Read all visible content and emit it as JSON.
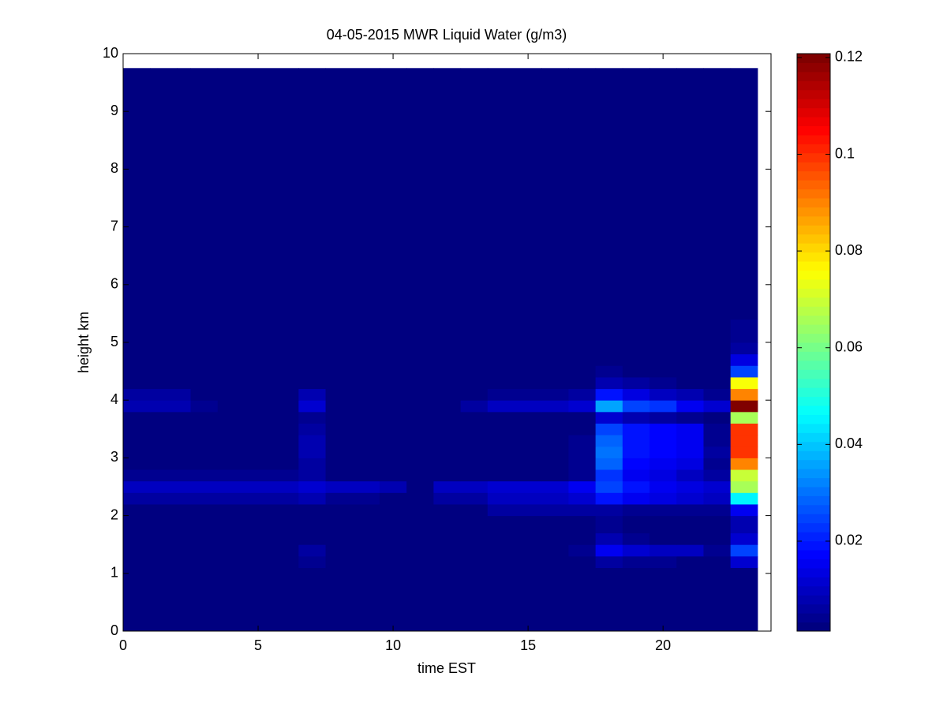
{
  "chart_data": {
    "type": "heatmap",
    "title": "04-05-2015 MWR Liquid Water (g/m3)",
    "x_label": "time EST",
    "y_label": "height km",
    "xlim": [
      0,
      24
    ],
    "xticks": [
      0,
      5,
      10,
      15,
      20
    ],
    "ylim": [
      0,
      10
    ],
    "yticks": [
      0,
      1,
      2,
      3,
      4,
      5,
      6,
      7,
      8,
      9,
      10
    ],
    "colormap": "jet",
    "clim": [
      0.0014,
      0.1208
    ],
    "cticks": [
      0.02,
      0.04,
      0.06,
      0.08,
      0.1,
      0.12
    ],
    "x_edges": [
      0,
      1,
      2,
      2.5,
      3.5,
      6.5,
      7.5,
      9.5,
      10.5,
      11.5,
      12.5,
      13.5,
      15.5,
      16.5,
      17.5,
      18.5,
      19.5,
      20.5,
      21.5,
      22.5,
      23.5
    ],
    "y_edges": [
      0,
      1.1,
      1.3,
      1.5,
      1.7,
      2.0,
      2.2,
      2.4,
      2.6,
      2.8,
      3.0,
      3.2,
      3.4,
      3.6,
      3.8,
      4.0,
      4.2,
      4.4,
      4.6,
      4.8,
      5.0,
      5.4,
      9.75
    ],
    "z": [
      [
        0.002,
        0.002,
        0.002,
        0.002,
        0.002,
        0.002,
        0.002,
        0.002,
        0.002,
        0.002,
        0.002,
        0.002,
        0.002,
        0.002,
        0.002,
        0.002,
        0.002,
        0.002,
        0.002,
        0.002
      ],
      [
        0.002,
        0.002,
        0.002,
        0.002,
        0.002,
        0.004,
        0.002,
        0.002,
        0.002,
        0.002,
        0.002,
        0.002,
        0.002,
        0.002,
        0.006,
        0.004,
        0.004,
        0.003,
        0.002,
        0.012
      ],
      [
        0.002,
        0.002,
        0.002,
        0.002,
        0.002,
        0.006,
        0.002,
        0.002,
        0.002,
        0.002,
        0.002,
        0.002,
        0.002,
        0.005,
        0.015,
        0.012,
        0.01,
        0.01,
        0.004,
        0.025
      ],
      [
        0.002,
        0.002,
        0.002,
        0.002,
        0.002,
        0.002,
        0.002,
        0.002,
        0.002,
        0.002,
        0.002,
        0.002,
        0.002,
        0.002,
        0.008,
        0.004,
        0.003,
        0.003,
        0.002,
        0.012
      ],
      [
        0.002,
        0.002,
        0.002,
        0.002,
        0.002,
        0.002,
        0.002,
        0.002,
        0.002,
        0.002,
        0.002,
        0.002,
        0.002,
        0.002,
        0.004,
        0.002,
        0.002,
        0.002,
        0.002,
        0.008
      ],
      [
        0.002,
        0.002,
        0.002,
        0.002,
        0.002,
        0.003,
        0.002,
        0.002,
        0.002,
        0.002,
        0.002,
        0.006,
        0.006,
        0.006,
        0.006,
        0.005,
        0.005,
        0.005,
        0.005,
        0.015
      ],
      [
        0.006,
        0.006,
        0.006,
        0.006,
        0.006,
        0.007,
        0.004,
        0.002,
        0.002,
        0.006,
        0.006,
        0.01,
        0.01,
        0.012,
        0.02,
        0.016,
        0.014,
        0.012,
        0.01,
        0.045
      ],
      [
        0.01,
        0.01,
        0.01,
        0.01,
        0.01,
        0.012,
        0.009,
        0.007,
        0.003,
        0.01,
        0.01,
        0.012,
        0.012,
        0.015,
        0.025,
        0.02,
        0.015,
        0.013,
        0.012,
        0.065
      ],
      [
        0.004,
        0.004,
        0.004,
        0.004,
        0.004,
        0.006,
        0.002,
        0.002,
        0.002,
        0.002,
        0.002,
        0.002,
        0.002,
        0.004,
        0.022,
        0.016,
        0.014,
        0.01,
        0.006,
        0.07
      ],
      [
        0.002,
        0.002,
        0.002,
        0.002,
        0.002,
        0.006,
        0.002,
        0.002,
        0.002,
        0.002,
        0.002,
        0.002,
        0.002,
        0.004,
        0.028,
        0.018,
        0.016,
        0.013,
        0.005,
        0.09
      ],
      [
        0.002,
        0.002,
        0.002,
        0.002,
        0.002,
        0.008,
        0.002,
        0.002,
        0.002,
        0.002,
        0.002,
        0.002,
        0.002,
        0.004,
        0.03,
        0.02,
        0.018,
        0.016,
        0.006,
        0.1
      ],
      [
        0.002,
        0.002,
        0.002,
        0.002,
        0.002,
        0.007,
        0.002,
        0.002,
        0.002,
        0.002,
        0.002,
        0.002,
        0.002,
        0.004,
        0.028,
        0.02,
        0.018,
        0.016,
        0.005,
        0.1
      ],
      [
        0.002,
        0.002,
        0.002,
        0.002,
        0.002,
        0.006,
        0.002,
        0.002,
        0.002,
        0.002,
        0.002,
        0.002,
        0.002,
        0.003,
        0.025,
        0.02,
        0.018,
        0.016,
        0.004,
        0.1
      ],
      [
        0.002,
        0.002,
        0.002,
        0.002,
        0.002,
        0.004,
        0.002,
        0.002,
        0.002,
        0.002,
        0.002,
        0.002,
        0.002,
        0.002,
        0.012,
        0.008,
        0.006,
        0.005,
        0.003,
        0.065
      ],
      [
        0.008,
        0.008,
        0.008,
        0.004,
        0.002,
        0.012,
        0.002,
        0.002,
        0.002,
        0.002,
        0.006,
        0.01,
        0.01,
        0.012,
        0.035,
        0.025,
        0.022,
        0.016,
        0.012,
        0.12
      ],
      [
        0.006,
        0.006,
        0.006,
        0.003,
        0.002,
        0.008,
        0.002,
        0.002,
        0.002,
        0.002,
        0.003,
        0.005,
        0.005,
        0.006,
        0.02,
        0.014,
        0.01,
        0.008,
        0.004,
        0.09
      ],
      [
        0.002,
        0.002,
        0.002,
        0.002,
        0.002,
        0.002,
        0.002,
        0.002,
        0.002,
        0.002,
        0.002,
        0.002,
        0.002,
        0.002,
        0.008,
        0.006,
        0.004,
        0.003,
        0.002,
        0.075
      ],
      [
        0.002,
        0.002,
        0.002,
        0.002,
        0.002,
        0.002,
        0.002,
        0.002,
        0.002,
        0.002,
        0.002,
        0.002,
        0.002,
        0.002,
        0.004,
        0.003,
        0.002,
        0.002,
        0.002,
        0.025
      ],
      [
        0.002,
        0.002,
        0.002,
        0.002,
        0.002,
        0.002,
        0.002,
        0.002,
        0.002,
        0.002,
        0.002,
        0.002,
        0.002,
        0.002,
        0.002,
        0.002,
        0.002,
        0.002,
        0.002,
        0.014
      ],
      [
        0.002,
        0.002,
        0.002,
        0.002,
        0.002,
        0.002,
        0.002,
        0.002,
        0.002,
        0.002,
        0.002,
        0.002,
        0.002,
        0.002,
        0.002,
        0.002,
        0.002,
        0.002,
        0.002,
        0.006
      ],
      [
        0.002,
        0.002,
        0.002,
        0.002,
        0.002,
        0.002,
        0.002,
        0.002,
        0.002,
        0.002,
        0.002,
        0.002,
        0.002,
        0.002,
        0.002,
        0.002,
        0.002,
        0.002,
        0.002,
        0.004
      ],
      [
        0.002,
        0.002,
        0.002,
        0.002,
        0.002,
        0.002,
        0.002,
        0.002,
        0.002,
        0.002,
        0.002,
        0.002,
        0.002,
        0.002,
        0.002,
        0.002,
        0.002,
        0.002,
        0.002,
        0.002
      ]
    ]
  }
}
